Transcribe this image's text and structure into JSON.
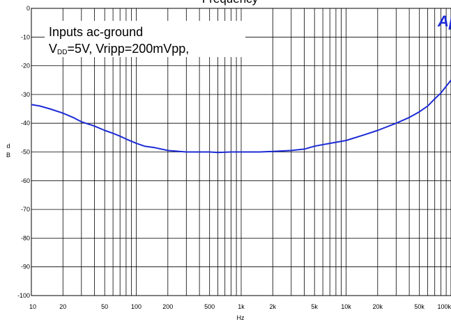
{
  "chart_data": {
    "type": "line",
    "title": "Frequency",
    "xlabel": "Hz",
    "ylabel": "dB",
    "xscale": "log",
    "xlim": [
      10,
      100000
    ],
    "ylim": [
      -100,
      0
    ],
    "x_tick_values": [
      10,
      20,
      50,
      100,
      200,
      500,
      1000,
      2000,
      5000,
      10000,
      20000,
      50000,
      100000
    ],
    "x_tick_labels": [
      "10",
      "20",
      "50",
      "100",
      "200",
      "500",
      "1k",
      "2k",
      "5k",
      "10k",
      "20k",
      "50k",
      "100k"
    ],
    "y_tick_values": [
      0,
      -10,
      -20,
      -30,
      -40,
      -50,
      -60,
      -70,
      -80,
      -90,
      -100
    ],
    "y_tick_labels": [
      "0",
      "-10",
      "-20",
      "-30",
      "-40",
      "-50",
      "-60",
      "-70",
      "-80",
      "-90",
      "-100"
    ],
    "grid": true,
    "annotation": {
      "line1": "Inputs ac-ground",
      "line2_prefix": "V",
      "line2_sub": "DD",
      "line2_rest": "=5V, Vripp=200mVpp,"
    },
    "logo_text": "Ap",
    "series": [
      {
        "color": "#1c2bd6",
        "x": [
          10,
          12,
          15,
          20,
          25,
          30,
          40,
          50,
          60,
          70,
          80,
          100,
          120,
          150,
          200,
          300,
          400,
          500,
          600,
          800,
          1000,
          1500,
          2000,
          3000,
          4000,
          5000,
          7000,
          10000,
          15000,
          20000,
          30000,
          40000,
          50000,
          60000,
          70000,
          80000,
          100000
        ],
        "y": [
          -33.5,
          -34,
          -35,
          -36.5,
          -38,
          -39.5,
          -41,
          -42.5,
          -43.5,
          -44.5,
          -45.5,
          -47,
          -48,
          -48.5,
          -49.5,
          -50,
          -50,
          -50,
          -50.2,
          -50,
          -50,
          -50,
          -49.8,
          -49.5,
          -49,
          -48,
          -47,
          -46,
          -44,
          -42.5,
          -40,
          -38,
          -36,
          -34,
          -31.5,
          -29.5,
          -25
        ]
      }
    ]
  }
}
